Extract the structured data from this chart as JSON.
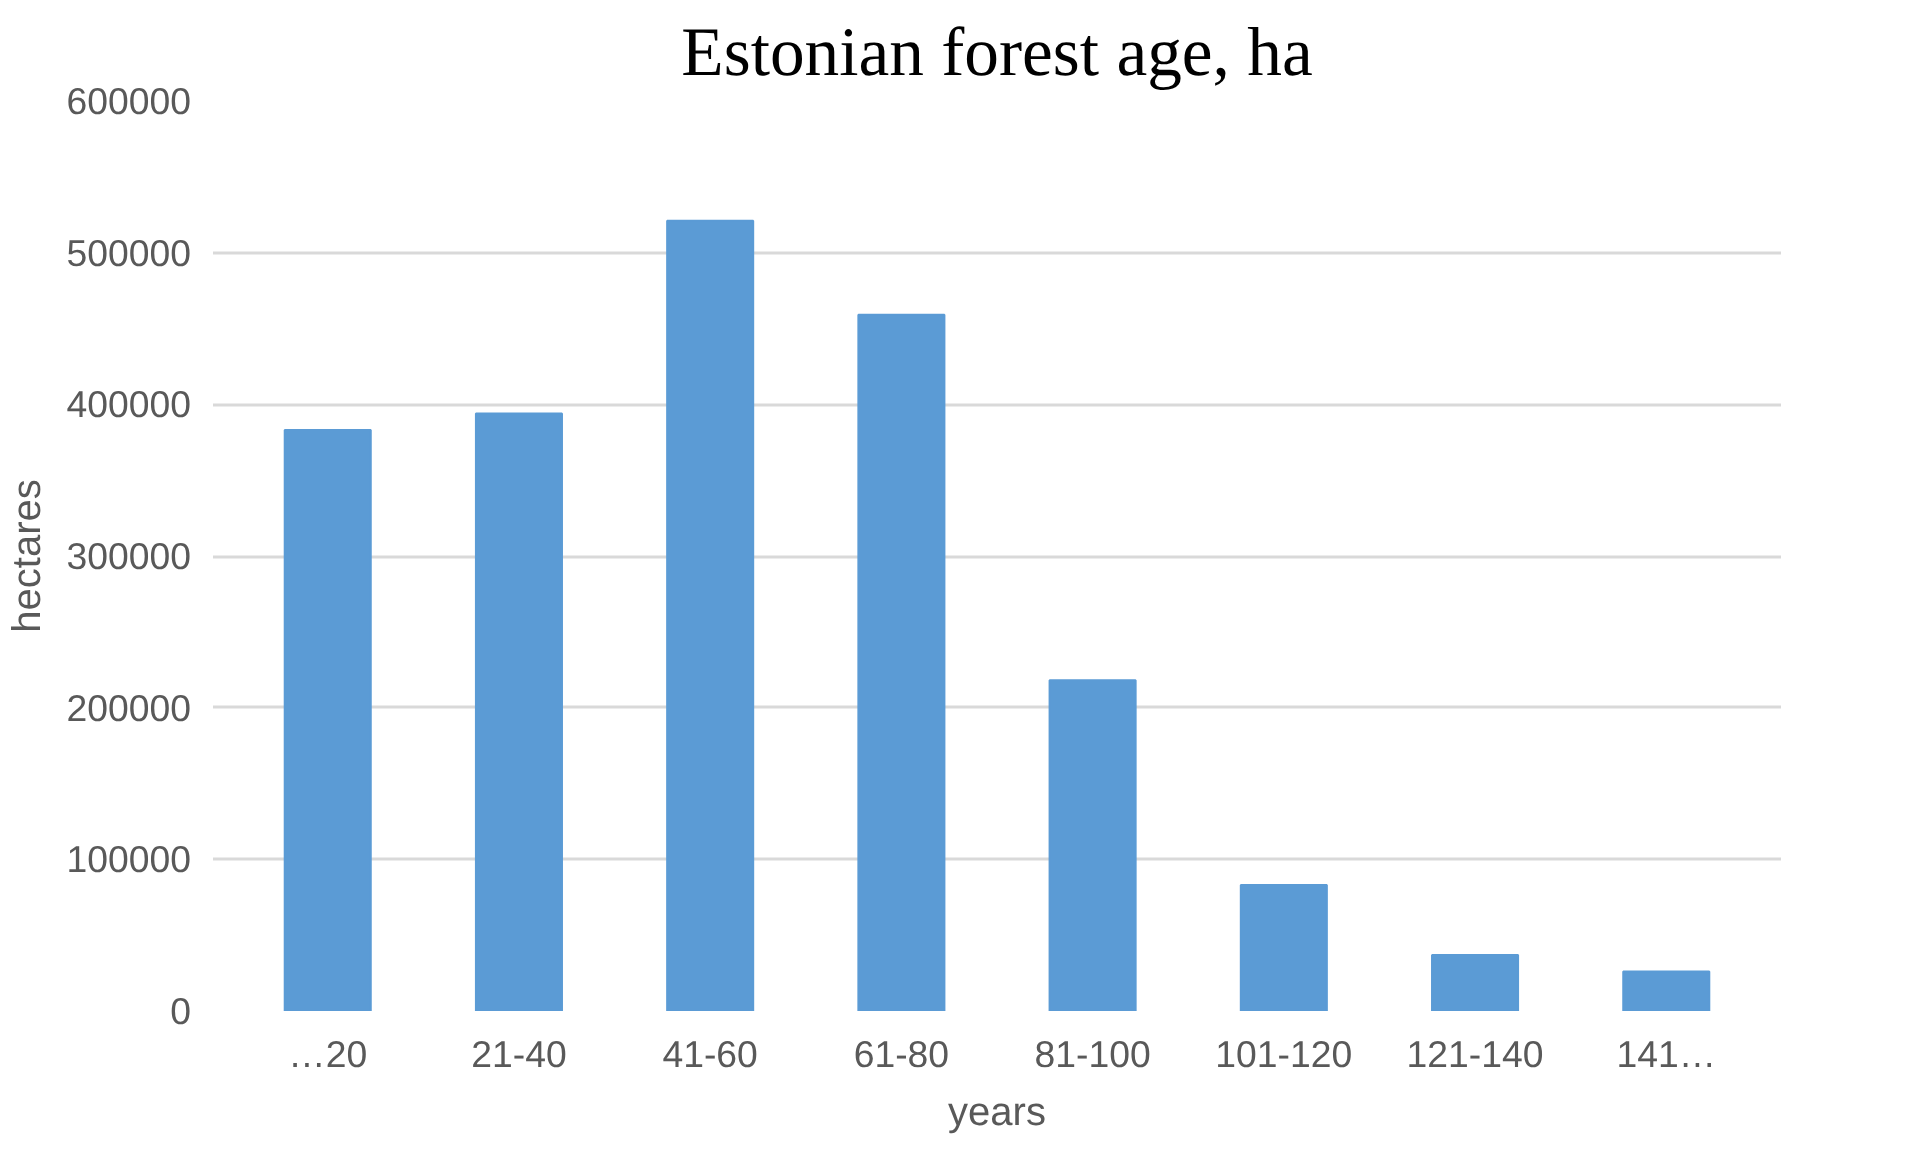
{
  "chart_data": {
    "type": "bar",
    "title": "Estonian forest age, ha",
    "xlabel": "years",
    "ylabel": "hectares",
    "categories": [
      "…20",
      "21-40",
      "41-60",
      "61-80",
      "81-100",
      "101-120",
      "121-140",
      "141…"
    ],
    "series": [
      {
        "color": "#5b9bd5",
        "values": [
          383000,
          394000,
          521000,
          459000,
          218000,
          83000,
          37000,
          26000
        ]
      }
    ],
    "ylim": [
      0,
      600000
    ],
    "yticks": [
      0,
      100000,
      200000,
      300000,
      400000,
      500000,
      600000
    ],
    "grid": "y"
  }
}
